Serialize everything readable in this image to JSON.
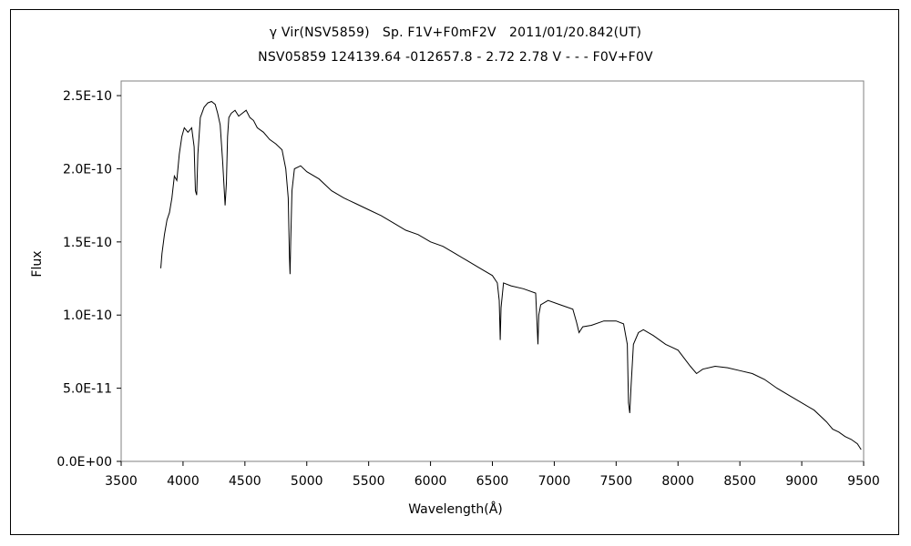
{
  "chart_data": {
    "type": "line",
    "title": "γ Vir(NSV5859)　Sp. F1V+F0mF2V　2011/01/20.842(UT)",
    "subtitle": "NSV05859 124139.64 -012657.8 - 2.72 2.78 V - - - F0V+F0V",
    "xlabel": "Wavelength(Å)",
    "ylabel": "Flux",
    "xlim": [
      3500,
      9500
    ],
    "ylim": [
      0,
      2.6e-10
    ],
    "x_ticks": [
      3500,
      4000,
      4500,
      5000,
      5500,
      6000,
      6500,
      7000,
      7500,
      8000,
      8500,
      9000,
      9500
    ],
    "x_tick_labels": [
      "3500",
      "4000",
      "4500",
      "5000",
      "5500",
      "6000",
      "6500",
      "7000",
      "7500",
      "8000",
      "8500",
      "9000",
      "9500"
    ],
    "y_ticks": [
      0,
      5e-11,
      1e-10,
      1.5e-10,
      2e-10,
      2.5e-10
    ],
    "y_tick_labels": [
      "0.0E+00",
      "5.0E-11",
      "1.0E-10",
      "1.5E-10",
      "2.0E-10",
      "2.5E-10"
    ],
    "grid": false,
    "series": [
      {
        "x": [
          3820,
          3830,
          3850,
          3870,
          3890,
          3910,
          3930,
          3950,
          3970,
          3990,
          4010,
          4040,
          4070,
          4090,
          4100,
          4110,
          4120,
          4140,
          4170,
          4200,
          4230,
          4260,
          4280,
          4300,
          4320,
          4340,
          4350,
          4360,
          4370,
          4390,
          4420,
          4450,
          4480,
          4510,
          4540,
          4570,
          4600,
          4650,
          4700,
          4750,
          4800,
          4830,
          4850,
          4860,
          4865,
          4870,
          4880,
          4900,
          4950,
          5000,
          5100,
          5200,
          5300,
          5400,
          5500,
          5600,
          5700,
          5800,
          5900,
          6000,
          6100,
          6200,
          6300,
          6400,
          6500,
          6540,
          6555,
          6563,
          6570,
          6590,
          6650,
          6750,
          6850,
          6868,
          6875,
          6890,
          6950,
          7050,
          7150,
          7180,
          7200,
          7230,
          7300,
          7400,
          7500,
          7560,
          7590,
          7600,
          7610,
          7620,
          7640,
          7680,
          7720,
          7800,
          7900,
          8000,
          8100,
          8150,
          8200,
          8300,
          8400,
          8500,
          8600,
          8700,
          8800,
          8900,
          9000,
          9100,
          9200,
          9250,
          9300,
          9350,
          9400,
          9450,
          9480
        ],
        "y": [
          1.32e-10,
          1.42e-10,
          1.55e-10,
          1.65e-10,
          1.7e-10,
          1.8e-10,
          1.95e-10,
          1.92e-10,
          2.1e-10,
          2.22e-10,
          2.28e-10,
          2.25e-10,
          2.28e-10,
          2.15e-10,
          1.85e-10,
          1.82e-10,
          2.1e-10,
          2.35e-10,
          2.42e-10,
          2.45e-10,
          2.46e-10,
          2.44e-10,
          2.38e-10,
          2.3e-10,
          2.05e-10,
          1.75e-10,
          1.9e-10,
          2.22e-10,
          2.35e-10,
          2.38e-10,
          2.4e-10,
          2.36e-10,
          2.38e-10,
          2.4e-10,
          2.35e-10,
          2.33e-10,
          2.28e-10,
          2.25e-10,
          2.2e-10,
          2.17e-10,
          2.13e-10,
          2e-10,
          1.8e-10,
          1.4e-10,
          1.28e-10,
          1.5e-10,
          1.85e-10,
          2e-10,
          2.02e-10,
          1.98e-10,
          1.93e-10,
          1.85e-10,
          1.8e-10,
          1.76e-10,
          1.72e-10,
          1.68e-10,
          1.63e-10,
          1.58e-10,
          1.55e-10,
          1.5e-10,
          1.47e-10,
          1.42e-10,
          1.37e-10,
          1.32e-10,
          1.27e-10,
          1.22e-10,
          1.1e-10,
          8.3e-11,
          1.05e-10,
          1.22e-10,
          1.2e-10,
          1.18e-10,
          1.15e-10,
          8e-11,
          1e-10,
          1.07e-10,
          1.1e-10,
          1.07e-10,
          1.04e-10,
          9.5e-11,
          8.8e-11,
          9.2e-11,
          9.3e-11,
          9.6e-11,
          9.6e-11,
          9.4e-11,
          8e-11,
          4e-11,
          3.3e-11,
          5e-11,
          8e-11,
          8.8e-11,
          9e-11,
          8.6e-11,
          8e-11,
          7.6e-11,
          6.5e-11,
          6e-11,
          6.3e-11,
          6.5e-11,
          6.4e-11,
          6.2e-11,
          6e-11,
          5.6e-11,
          5e-11,
          4.5e-11,
          4e-11,
          3.5e-11,
          2.7e-11,
          2.2e-11,
          2e-11,
          1.7e-11,
          1.5e-11,
          1.2e-11,
          8e-12
        ]
      }
    ]
  }
}
